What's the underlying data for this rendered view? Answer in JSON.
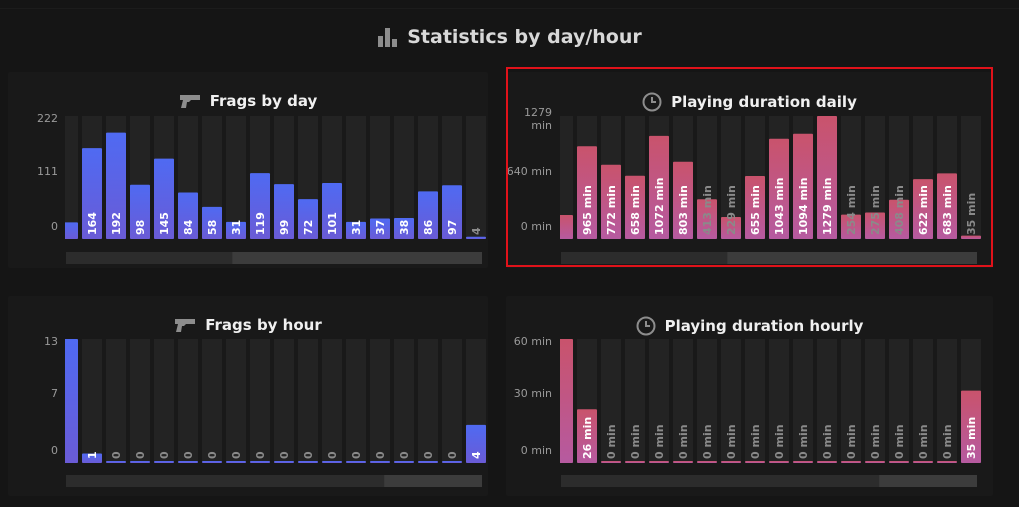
{
  "page": {
    "title": "Statistics by day/hour"
  },
  "colors": {
    "background": "#151515",
    "panel": "#191919",
    "track": "#232323",
    "blue": "#5b63e6",
    "pink": "#c2568a",
    "highlight": "#e0121a"
  },
  "chart_data": [
    {
      "id": "frags-day",
      "type": "bar",
      "title": "Frags by day",
      "icon": "pistol-icon",
      "color": "blue",
      "ylim": [
        0,
        222
      ],
      "yticks": [
        "222",
        "111",
        "0"
      ],
      "values": [
        30,
        164,
        192,
        98,
        145,
        84,
        58,
        31,
        119,
        99,
        72,
        101,
        31,
        37,
        38,
        86,
        97,
        4
      ],
      "labels": [
        "",
        "164",
        "192",
        "98",
        "145",
        "84",
        "58",
        "31",
        "119",
        "99",
        "72",
        "101",
        "31",
        "37",
        "38",
        "86",
        "97",
        "4"
      ],
      "scroll_start": 0.4
    },
    {
      "id": "duration-day",
      "type": "bar",
      "title": "Playing duration daily",
      "icon": "clock-icon",
      "color": "pink",
      "ylim": [
        0,
        1279
      ],
      "yticks": [
        "1279 min",
        "640 min",
        "0 min"
      ],
      "values": [
        250,
        965,
        772,
        658,
        1072,
        803,
        413,
        229,
        655,
        1043,
        1094,
        1279,
        254,
        275,
        408,
        622,
        683,
        35
      ],
      "labels": [
        "",
        "965 min",
        "772 min",
        "658 min",
        "1072 min",
        "803 min",
        "413 min",
        "229 min",
        "655 min",
        "1043 min",
        "1094 min",
        "1279 min",
        "254 min",
        "275 min",
        "408 min",
        "622 min",
        "683 min",
        "35 min"
      ],
      "scroll_start": 0.4
    },
    {
      "id": "frags-hour",
      "type": "bar",
      "title": "Frags by hour",
      "icon": "pistol-icon",
      "color": "blue",
      "ylim": [
        0,
        13
      ],
      "yticks": [
        "13",
        "7",
        "0"
      ],
      "values": [
        13,
        1,
        0,
        0,
        0,
        0,
        0,
        0,
        0,
        0,
        0,
        0,
        0,
        0,
        0,
        0,
        0,
        4
      ],
      "labels": [
        "",
        "1",
        "0",
        "0",
        "0",
        "0",
        "0",
        "0",
        "0",
        "0",
        "0",
        "0",
        "0",
        "0",
        "0",
        "0",
        "0",
        "4"
      ],
      "scroll_start": 0.765
    },
    {
      "id": "duration-hour",
      "type": "bar",
      "title": "Playing duration hourly",
      "icon": "clock-icon",
      "color": "pink",
      "ylim": [
        0,
        60
      ],
      "yticks": [
        "60 min",
        "30 min",
        "0 min"
      ],
      "values": [
        60,
        26,
        0,
        0,
        0,
        0,
        0,
        0,
        0,
        0,
        0,
        0,
        0,
        0,
        0,
        0,
        0,
        35
      ],
      "labels": [
        "",
        "26 min",
        "0 min",
        "0 min",
        "0 min",
        "0 min",
        "0 min",
        "0 min",
        "0 min",
        "0 min",
        "0 min",
        "0 min",
        "0 min",
        "0 min",
        "0 min",
        "0 min",
        "0 min",
        "35 min"
      ],
      "scroll_start": 0.765
    }
  ]
}
